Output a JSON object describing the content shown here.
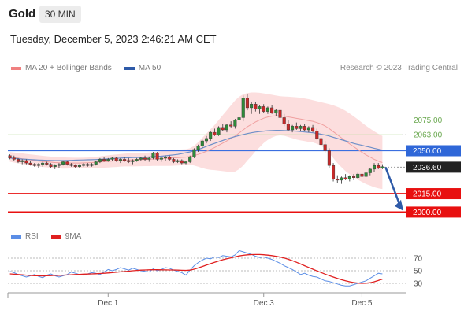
{
  "header": {
    "instrument": "Gold",
    "timeframe": "30 MIN",
    "datetime": "Tuesday, December 5, 2023 2:46:21 AM CET"
  },
  "legend": {
    "items": [
      {
        "label": "MA 20 + Bollinger Bands",
        "color": "#f08080"
      },
      {
        "label": "MA 50",
        "color": "#2e5aa8"
      }
    ],
    "credit": "Research © 2023 Trading Central"
  },
  "rsi_legend": {
    "items": [
      {
        "label": "RSI",
        "color": "#5b8ee6"
      },
      {
        "label": "9MA",
        "color": "#e02020"
      }
    ]
  },
  "chart_data": [
    {
      "type": "candlestick",
      "x_tick_labels": [
        "Dec 1",
        "Dec 3",
        "Dec 5"
      ],
      "ylim": [
        1990,
        2110
      ],
      "current_price": 2036.6,
      "levels": [
        {
          "value": 2075.0,
          "label": "2075.00",
          "style": "green-line"
        },
        {
          "value": 2063.0,
          "label": "2063.00",
          "style": "green-line"
        },
        {
          "value": 2050.0,
          "label": "2050.00",
          "style": "blue-tag"
        },
        {
          "value": 2036.6,
          "label": "2036.60",
          "style": "price-tag"
        },
        {
          "value": 2015.0,
          "label": "2015.00",
          "style": "red-tag"
        },
        {
          "value": 2000.0,
          "label": "2000.00",
          "style": "red-tag"
        }
      ],
      "projection": {
        "from": 2036.6,
        "to": 2001,
        "color": "#2e5aa8"
      },
      "candles": [
        [
          2046,
          2047,
          2043,
          2044
        ],
        [
          2044,
          2046,
          2042,
          2043
        ],
        [
          2043,
          2044,
          2040,
          2041
        ],
        [
          2041,
          2043,
          2039,
          2042
        ],
        [
          2042,
          2043,
          2039,
          2040
        ],
        [
          2040,
          2042,
          2038,
          2039
        ],
        [
          2039,
          2040,
          2037,
          2038
        ],
        [
          2038,
          2040,
          2036,
          2039
        ],
        [
          2039,
          2041,
          2037,
          2040
        ],
        [
          2040,
          2041,
          2038,
          2039
        ],
        [
          2039,
          2040,
          2036,
          2037
        ],
        [
          2037,
          2039,
          2035,
          2038
        ],
        [
          2038,
          2040,
          2036,
          2039
        ],
        [
          2039,
          2042,
          2038,
          2041
        ],
        [
          2041,
          2042,
          2038,
          2039
        ],
        [
          2039,
          2040,
          2037,
          2038
        ],
        [
          2038,
          2039,
          2036,
          2037
        ],
        [
          2037,
          2039,
          2036,
          2038
        ],
        [
          2038,
          2040,
          2037,
          2039
        ],
        [
          2039,
          2040,
          2037,
          2038
        ],
        [
          2038,
          2040,
          2037,
          2039
        ],
        [
          2039,
          2042,
          2038,
          2041
        ],
        [
          2041,
          2044,
          2040,
          2043
        ],
        [
          2043,
          2045,
          2041,
          2042
        ],
        [
          2042,
          2044,
          2041,
          2043
        ],
        [
          2043,
          2045,
          2042,
          2044
        ],
        [
          2044,
          2045,
          2041,
          2042
        ],
        [
          2042,
          2044,
          2040,
          2043
        ],
        [
          2043,
          2045,
          2041,
          2042
        ],
        [
          2042,
          2044,
          2040,
          2041
        ],
        [
          2041,
          2043,
          2039,
          2042
        ],
        [
          2042,
          2044,
          2041,
          2043
        ],
        [
          2043,
          2045,
          2042,
          2044
        ],
        [
          2044,
          2046,
          2042,
          2043
        ],
        [
          2043,
          2045,
          2041,
          2044
        ],
        [
          2044,
          2049,
          2043,
          2048
        ],
        [
          2048,
          2049,
          2042,
          2043
        ],
        [
          2043,
          2045,
          2041,
          2044
        ],
        [
          2044,
          2046,
          2042,
          2045
        ],
        [
          2045,
          2046,
          2042,
          2043
        ],
        [
          2043,
          2044,
          2040,
          2041
        ],
        [
          2041,
          2043,
          2040,
          2042
        ],
        [
          2042,
          2043,
          2039,
          2040
        ],
        [
          2040,
          2042,
          2039,
          2041
        ],
        [
          2041,
          2046,
          2040,
          2045
        ],
        [
          2045,
          2052,
          2044,
          2051
        ],
        [
          2051,
          2055,
          2049,
          2054
        ],
        [
          2054,
          2059,
          2052,
          2058
        ],
        [
          2058,
          2062,
          2056,
          2060
        ],
        [
          2060,
          2066,
          2058,
          2065
        ],
        [
          2065,
          2068,
          2062,
          2063
        ],
        [
          2063,
          2070,
          2062,
          2069
        ],
        [
          2069,
          2072,
          2066,
          2067
        ],
        [
          2067,
          2072,
          2065,
          2071
        ],
        [
          2071,
          2074,
          2069,
          2070
        ],
        [
          2070,
          2076,
          2068,
          2075
        ],
        [
          2075,
          2110,
          2073,
          2077
        ],
        [
          2077,
          2095,
          2074,
          2093
        ],
        [
          2093,
          2096,
          2083,
          2085
        ],
        [
          2085,
          2090,
          2080,
          2088
        ],
        [
          2088,
          2090,
          2082,
          2084
        ],
        [
          2084,
          2087,
          2080,
          2086
        ],
        [
          2086,
          2088,
          2081,
          2082
        ],
        [
          2082,
          2086,
          2080,
          2085
        ],
        [
          2085,
          2087,
          2080,
          2081
        ],
        [
          2081,
          2084,
          2078,
          2083
        ],
        [
          2083,
          2084,
          2076,
          2077
        ],
        [
          2077,
          2080,
          2070,
          2072
        ],
        [
          2072,
          2075,
          2066,
          2067
        ],
        [
          2067,
          2071,
          2065,
          2070
        ],
        [
          2070,
          2073,
          2067,
          2068
        ],
        [
          2068,
          2071,
          2066,
          2070
        ],
        [
          2070,
          2072,
          2066,
          2067
        ],
        [
          2067,
          2070,
          2065,
          2069
        ],
        [
          2069,
          2071,
          2065,
          2066
        ],
        [
          2066,
          2068,
          2059,
          2060
        ],
        [
          2060,
          2062,
          2054,
          2055
        ],
        [
          2055,
          2058,
          2048,
          2050
        ],
        [
          2050,
          2052,
          2036,
          2038
        ],
        [
          2038,
          2040,
          2025,
          2027
        ],
        [
          2027,
          2030,
          2024,
          2026
        ],
        [
          2026,
          2029,
          2023,
          2028
        ],
        [
          2028,
          2031,
          2026,
          2027
        ],
        [
          2027,
          2030,
          2025,
          2029
        ],
        [
          2029,
          2031,
          2026,
          2028
        ],
        [
          2028,
          2032,
          2027,
          2031
        ],
        [
          2031,
          2033,
          2028,
          2029
        ],
        [
          2029,
          2033,
          2028,
          2032
        ],
        [
          2032,
          2036,
          2030,
          2035
        ],
        [
          2035,
          2040,
          2033,
          2038
        ],
        [
          2038,
          2040,
          2035,
          2036
        ],
        [
          2036,
          2039,
          2035,
          2037
        ]
      ],
      "ma50": [
        2044,
        2043.8,
        2043.5,
        2043.2,
        2043,
        2042.8,
        2042.6,
        2042.4,
        2042.3,
        2042.2,
        2042.1,
        2042,
        2042,
        2042,
        2042.1,
        2042.2,
        2042.3,
        2042.4,
        2042.5,
        2042.6,
        2042.7,
        2042.8,
        2043,
        2043.2,
        2043.4,
        2043.6,
        2043.8,
        2044,
        2044.2,
        2044.3,
        2044.4,
        2044.5,
        2044.6,
        2044.7,
        2044.9,
        2045.1,
        2045.3,
        2045.5,
        2045.8,
        2046.2,
        2046.6,
        2047,
        2047.6,
        2048.3,
        2049,
        2050,
        2051,
        2052.2,
        2053.5,
        2054.8,
        2056,
        2057.2,
        2058.4,
        2059.5,
        2060.5,
        2061.5,
        2062.4,
        2063.2,
        2064,
        2064.6,
        2065.2,
        2065.6,
        2066,
        2066.3,
        2066.5,
        2066.6,
        2066.6,
        2066.5,
        2066.3,
        2066.1,
        2065.9,
        2065.6,
        2065.3,
        2065,
        2064.6,
        2064.1,
        2063.5,
        2062.8,
        2062,
        2061,
        2060,
        2059,
        2058,
        2057,
        2056,
        2055.2,
        2054.4,
        2053.6,
        2052.8,
        2052,
        2051.2,
        2050.5
      ],
      "bollinger": {
        "mid": [
          2045,
          2044.5,
          2044,
          2043.5,
          2043,
          2042.5,
          2042,
          2041.6,
          2041.3,
          2041,
          2040.7,
          2040.4,
          2040.2,
          2040,
          2040,
          2040,
          2040,
          2040,
          2040.1,
          2040.2,
          2040.4,
          2040.6,
          2040.8,
          2041,
          2041.3,
          2041.6,
          2041.9,
          2042.2,
          2042.4,
          2042.5,
          2042.6,
          2042.7,
          2042.8,
          2042.9,
          2043,
          2043.2,
          2043.4,
          2043.6,
          2043.8,
          2044,
          2044.2,
          2044.4,
          2044.6,
          2044.8,
          2045.3,
          2046,
          2047,
          2048.2,
          2049.5,
          2051,
          2052.6,
          2054.4,
          2056.2,
          2058,
          2060,
          2062,
          2064.5,
          2067,
          2069.5,
          2071.5,
          2073.5,
          2075,
          2076.5,
          2077.5,
          2078.2,
          2078.5,
          2078.5,
          2078.2,
          2077.6,
          2077,
          2076.4,
          2075.8,
          2075.2,
          2074.6,
          2074,
          2073,
          2071.8,
          2070.2,
          2068,
          2065.5,
          2063,
          2060.5,
          2058,
          2055.6,
          2053.3,
          2051,
          2048.8,
          2046.6,
          2044.8,
          2043,
          2041.6,
          2040.4
        ],
        "upper": [
          2049,
          2048.6,
          2048.2,
          2047.8,
          2047.4,
          2047,
          2046.6,
          2046.2,
          2045.8,
          2045.5,
          2045.2,
          2045,
          2044.8,
          2044.6,
          2044.5,
          2044.4,
          2044.3,
          2044.3,
          2044.4,
          2044.5,
          2044.7,
          2045,
          2045.4,
          2045.8,
          2046.2,
          2046.6,
          2047,
          2047.3,
          2047.6,
          2047.8,
          2048,
          2048.1,
          2048.2,
          2048.3,
          2048.5,
          2048.8,
          2049.2,
          2049.6,
          2050,
          2050.3,
          2050.6,
          2050.8,
          2051,
          2051.2,
          2052,
          2054,
          2057,
          2060.5,
          2064,
          2067.5,
          2071,
          2075,
          2079,
          2083,
          2087,
          2091,
          2094,
          2096,
          2097,
          2097.5,
          2097.5,
          2097.2,
          2096.8,
          2096.2,
          2095.6,
          2095,
          2094.5,
          2094.2,
          2094,
          2093.8,
          2093.6,
          2093.2,
          2092.6,
          2092,
          2091.2,
          2090.4,
          2089.6,
          2088.8,
          2088,
          2087,
          2085.8,
          2084.4,
          2082.6,
          2080.4,
          2078,
          2075.6,
          2073,
          2070.4,
          2068,
          2065.8,
          2063.8,
          2062
        ],
        "lower": [
          2041,
          2040.4,
          2039.8,
          2039.2,
          2038.6,
          2038,
          2037.4,
          2037,
          2036.8,
          2036.5,
          2036.2,
          2035.8,
          2035.6,
          2035.4,
          2035.5,
          2035.6,
          2035.7,
          2035.7,
          2035.8,
          2035.9,
          2036.1,
          2036.2,
          2036.2,
          2036.2,
          2036.4,
          2036.6,
          2036.8,
          2037.1,
          2037.2,
          2037.2,
          2037.2,
          2037.3,
          2037.4,
          2037.5,
          2037.5,
          2037.6,
          2037.6,
          2037.6,
          2037.6,
          2037.7,
          2037.8,
          2038,
          2038.2,
          2038.4,
          2038.6,
          2038,
          2037,
          2035.9,
          2035,
          2034.5,
          2034.2,
          2033.8,
          2033.4,
          2033,
          2033,
          2033,
          2035,
          2038,
          2042,
          2045.5,
          2049.5,
          2052.8,
          2056.2,
          2058.8,
          2060.8,
          2062,
          2062.5,
          2062.2,
          2061.2,
          2060.2,
          2059.2,
          2058.4,
          2057.8,
          2057.2,
          2056.8,
          2055.6,
          2054,
          2051.6,
          2048,
          2044,
          2040,
          2036.6,
          2033.4,
          2030.8,
          2028.6,
          2026.4,
          2024.6,
          2022.8,
          2021.6,
          2020.2,
          2019.4,
          2018.8
        ]
      }
    },
    {
      "type": "line",
      "ylim": [
        20,
        90
      ],
      "y_tick_labels": [
        "70",
        "50",
        "30"
      ],
      "ref_lines": [
        70,
        50,
        30
      ],
      "series": [
        {
          "name": "RSI",
          "color": "#5b8ee6",
          "values": [
            49,
            47,
            44,
            42,
            40,
            42,
            44,
            41,
            39,
            43,
            45,
            42,
            40,
            42,
            44,
            48,
            46,
            44,
            43,
            45,
            47,
            46,
            44,
            48,
            52,
            50,
            52,
            55,
            53,
            51,
            54,
            52,
            50,
            49,
            48,
            53,
            50,
            52,
            55,
            54,
            51,
            49,
            47,
            43,
            51,
            58,
            63,
            67,
            70,
            69,
            72,
            71,
            74,
            73,
            72,
            75,
            82,
            80,
            78,
            76,
            73,
            71,
            72,
            70,
            68,
            65,
            62,
            58,
            55,
            52,
            48,
            44,
            46,
            43,
            41,
            40,
            37,
            34,
            33,
            31,
            29,
            27,
            26,
            26,
            28,
            30,
            32,
            34,
            38,
            42,
            46,
            45
          ]
        },
        {
          "name": "9MA",
          "color": "#e02020",
          "values": [
            45,
            44.5,
            44,
            43.5,
            43,
            42.5,
            42,
            42,
            41.8,
            42,
            42.3,
            42.6,
            42.8,
            43,
            43.3,
            43.6,
            44,
            44.3,
            44.6,
            44.8,
            45,
            45.3,
            45.6,
            46,
            46.5,
            47,
            47.6,
            48.2,
            48.8,
            49.4,
            50,
            50.5,
            51,
            51.3,
            51.5,
            51.6,
            51.6,
            51.5,
            51.4,
            51.3,
            51.2,
            51,
            50.8,
            50.6,
            51,
            52.5,
            54.5,
            56.8,
            59,
            61.2,
            63.5,
            65.5,
            67.5,
            69,
            70.5,
            72,
            73.5,
            74.5,
            75.2,
            75.6,
            75.8,
            75.7,
            75.4,
            74.8,
            74,
            73,
            71.8,
            70.2,
            68.2,
            66,
            63.5,
            60.8,
            58,
            55.2,
            52.5,
            49.8,
            47.2,
            44.6,
            42.2,
            40,
            37.8,
            35.8,
            34,
            32.5,
            31.2,
            30.4,
            30,
            30.2,
            31,
            32.5,
            34.5,
            36.8
          ]
        }
      ]
    }
  ]
}
